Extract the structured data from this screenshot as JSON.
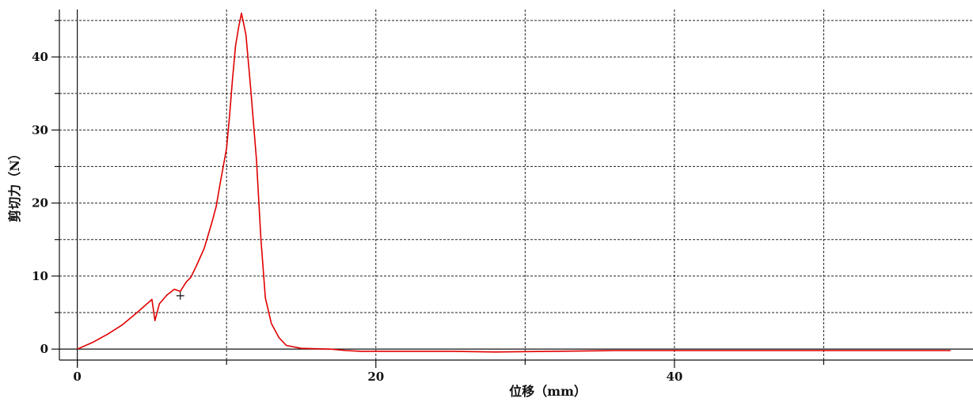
{
  "chart_data": {
    "type": "line",
    "title": "",
    "xlabel": "位移（mm）",
    "ylabel": "剪切力（N）",
    "xlim": [
      -1.2,
      60
    ],
    "ylim": [
      -1.5,
      46.5
    ],
    "x_ticks": [
      0,
      20,
      40
    ],
    "x_grid": [
      0,
      10,
      20,
      30,
      40,
      50
    ],
    "y_ticks": [
      0,
      10,
      20,
      30,
      40
    ],
    "y_grid": [
      0,
      5,
      10,
      15,
      20,
      25,
      30,
      35,
      40,
      45
    ],
    "grid": true,
    "grid_style": "dashed",
    "marker": {
      "x": 6.9,
      "y": 7.3,
      "symbol": "+"
    },
    "series": [
      {
        "color": "#e00000",
        "x": [
          0,
          1,
          2,
          3,
          4,
          5,
          5.2,
          5.5,
          6,
          6.5,
          6.9,
          7.3,
          7.6,
          8,
          8.5,
          9,
          9.3,
          9.6,
          10,
          10.2,
          10.4,
          10.6,
          10.8,
          11,
          11.3,
          11.6,
          12,
          12.3,
          12.6,
          13,
          13.5,
          14,
          15,
          17,
          18,
          19,
          22,
          25,
          28,
          32,
          36,
          40,
          45,
          50,
          55,
          58.5
        ],
        "y": [
          0,
          0.9,
          2,
          3.3,
          5,
          6.8,
          3.9,
          6.2,
          7.4,
          8.2,
          7.9,
          9.2,
          9.8,
          11.5,
          13.8,
          17.2,
          19.5,
          23,
          27.5,
          32,
          37,
          41.5,
          44,
          46,
          43,
          36,
          26,
          15,
          7,
          3.5,
          1.6,
          0.5,
          0.1,
          0,
          -0.2,
          -0.3,
          -0.3,
          -0.3,
          -0.4,
          -0.3,
          -0.2,
          -0.2,
          -0.2,
          -0.2,
          -0.2,
          -0.2
        ]
      }
    ]
  }
}
